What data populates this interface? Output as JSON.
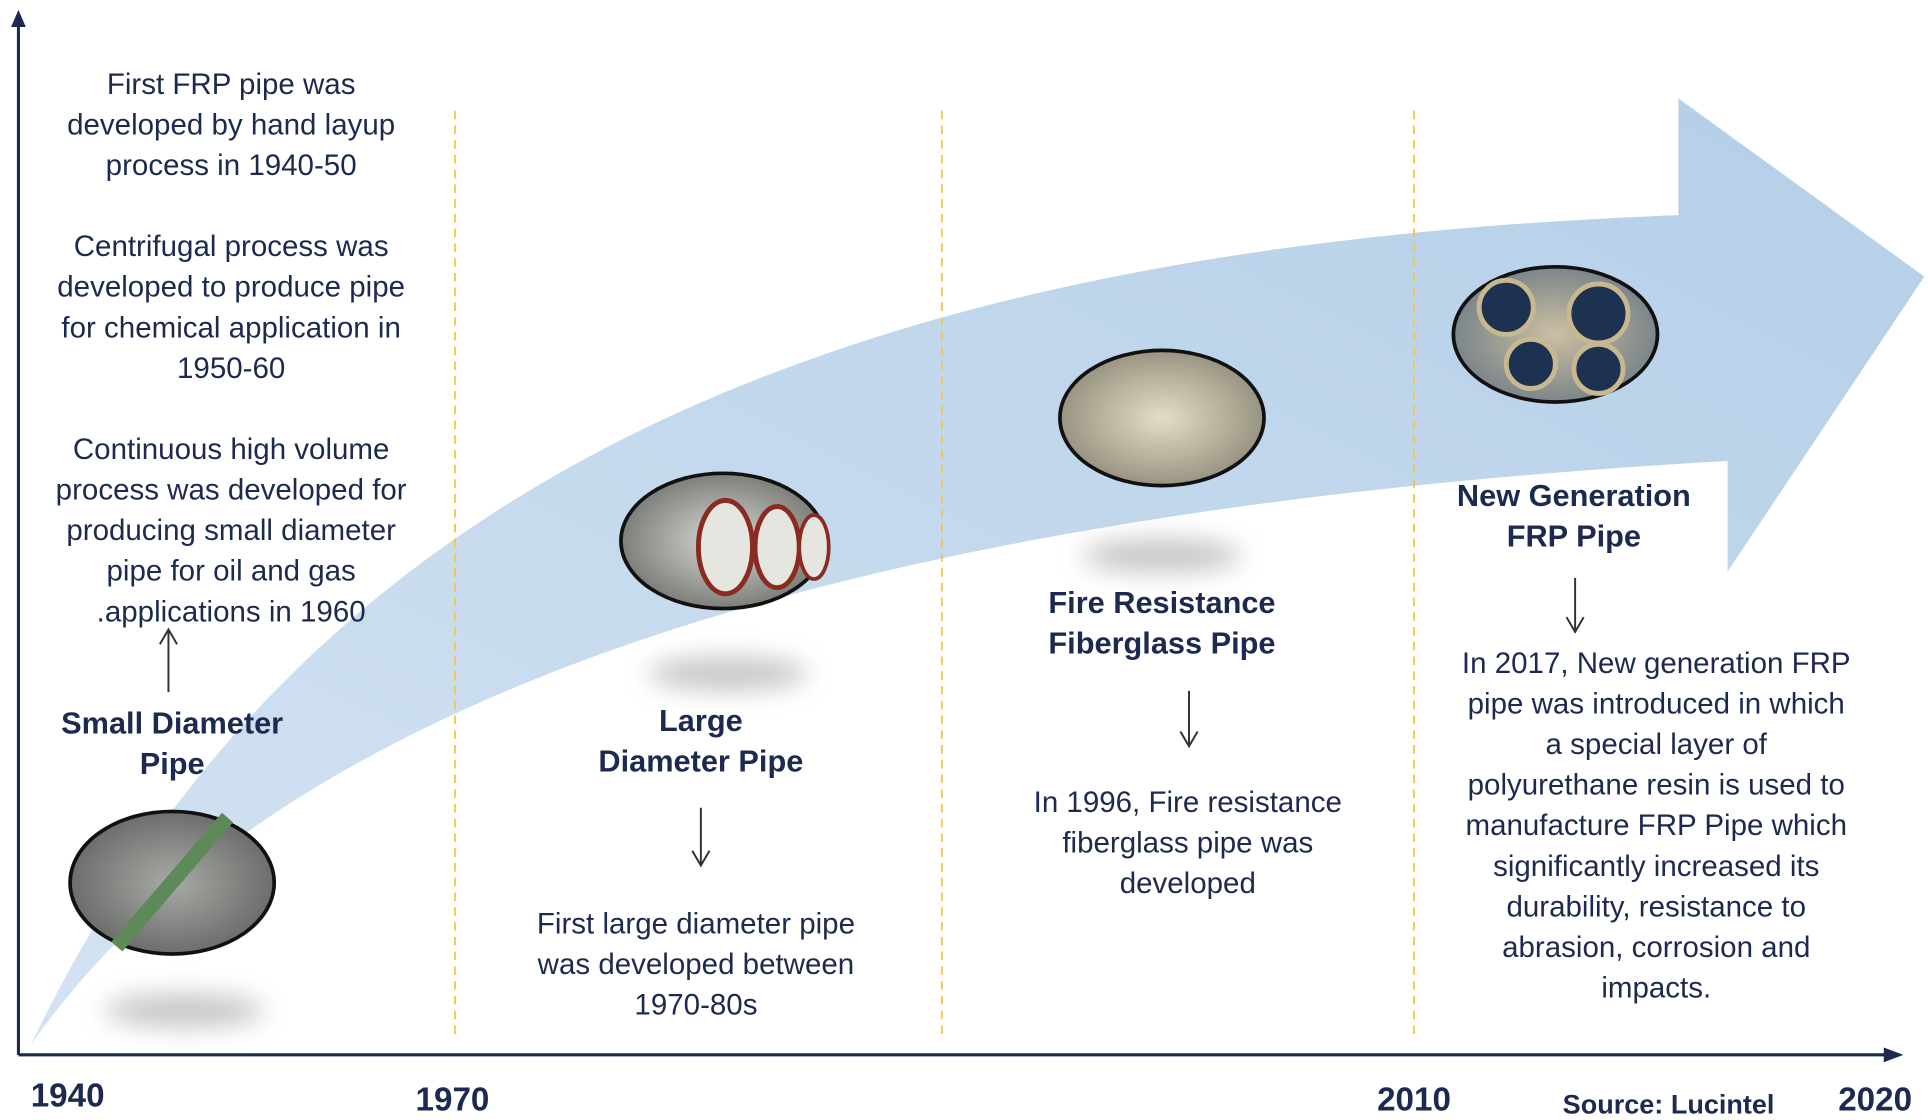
{
  "axis": {
    "labels": [
      "1940",
      "1970",
      "2010",
      "2020"
    ]
  },
  "source": "Source: Lucintel",
  "stages": [
    {
      "title": [
        "Small Diameter",
        "Pipe"
      ],
      "description": [
        [
          "First FRP pipe was",
          "developed by hand layup",
          "process in 1940-50"
        ],
        [
          "Centrifugal process was",
          "developed to produce pipe",
          "for chemical  application in",
          "1950-60"
        ],
        [
          "Continuous  high volume",
          "process was developed  for",
          "producing small diameter",
          "pipe for oil and gas",
          ".applications  in 1960"
        ]
      ]
    },
    {
      "title": [
        "Large",
        "Diameter Pipe"
      ],
      "description": [
        [
          "First large diameter pipe",
          "was developed between",
          "1970-80s"
        ]
      ]
    },
    {
      "title": [
        "Fire Resistance",
        "Fiberglass  Pipe"
      ],
      "description": [
        [
          "In 1996, Fire resistance",
          "fiberglass pipe was",
          "developed"
        ]
      ]
    },
    {
      "title": [
        "New Generation",
        "FRP Pipe"
      ],
      "description": [
        [
          "In 2017, New generation FRP",
          "pipe was introduced  in which",
          "a special layer of",
          "polyurethane  resin is used to",
          "manufacture  FRP Pipe which",
          "significantly  increased its",
          "durability, resistance to",
          "abrasion, corrosion and",
          "impacts."
        ]
      ]
    }
  ]
}
